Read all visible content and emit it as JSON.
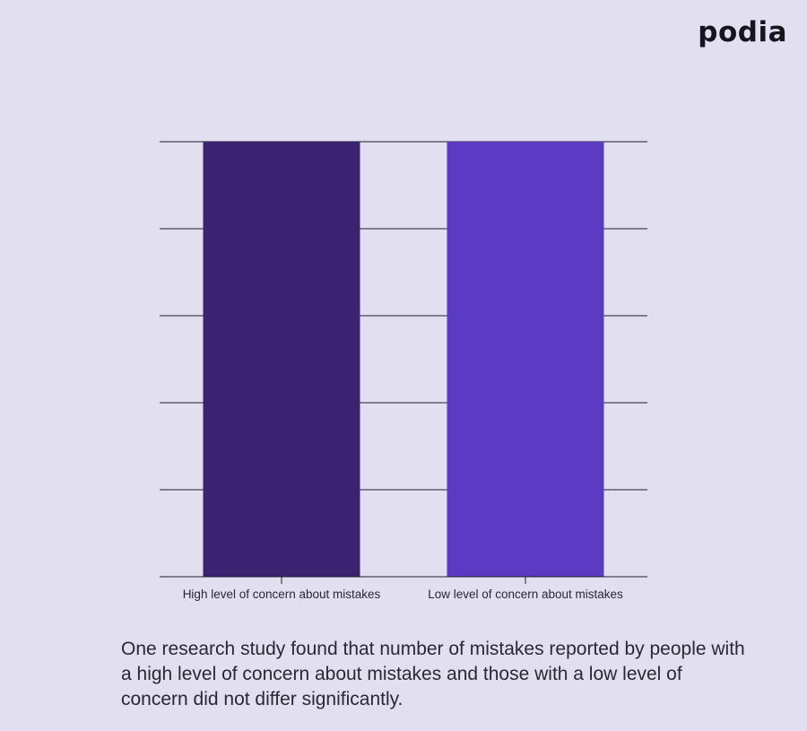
{
  "brand": {
    "logo_text": "podia"
  },
  "caption": "One research study found that number of mistakes reported by people with a high level of concern about mistakes and those with a low level of concern did not differ significantly.",
  "chart_data": {
    "type": "bar",
    "categories": [
      "High level of concern about mistakes",
      "Low level of concern about mistakes"
    ],
    "values": [
      5,
      5
    ],
    "colors": [
      "#3a2370",
      "#5b3bc4"
    ],
    "title": "",
    "xlabel": "",
    "ylabel": "",
    "ylim": [
      0,
      5
    ],
    "grid": true,
    "y_tick_labels_shown": false,
    "legend": "none"
  }
}
